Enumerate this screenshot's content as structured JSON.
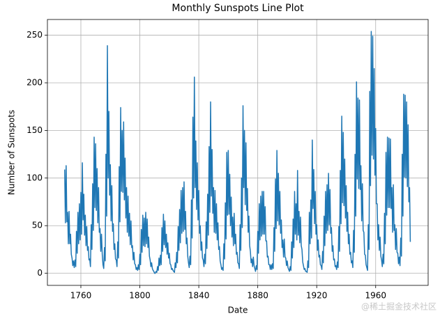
{
  "chart_data": {
    "type": "line",
    "title": "Monthly Sunspots Line Plot",
    "x_label": "Date",
    "y_label": "Number of Sunspots",
    "watermark": "@稀土掘金技术社区",
    "xlim": [
      1737.3,
      1995.6
    ],
    "ylim": [
      -12.7,
      266.5
    ],
    "xticks": [
      1760,
      1800,
      1840,
      1880,
      1920,
      1960
    ],
    "yticks": [
      0,
      50,
      100,
      150,
      200,
      250
    ],
    "grid": true,
    "x": [
      1749,
      1749.5,
      1750,
      1750.5,
      1751,
      1751.5,
      1752,
      1752.5,
      1753,
      1753.5,
      1754,
      1754.5,
      1755,
      1755.5,
      1756,
      1756.5,
      1757,
      1757.5,
      1758,
      1758.5,
      1759,
      1759.5,
      1760,
      1760.5,
      1761,
      1761.5,
      1762,
      1762.5,
      1763,
      1763.5,
      1764,
      1764.5,
      1765,
      1765.5,
      1766,
      1766.5,
      1767,
      1767.5,
      1768,
      1768.5,
      1769,
      1769.5,
      1770,
      1770.5,
      1771,
      1771.5,
      1772,
      1772.5,
      1773,
      1773.5,
      1774,
      1774.5,
      1775,
      1775.5,
      1776,
      1776.5,
      1777,
      1777.5,
      1778,
      1778.5,
      1779,
      1779.5,
      1780,
      1780.5,
      1781,
      1781.5,
      1782,
      1782.5,
      1783,
      1783.5,
      1784,
      1784.5,
      1785,
      1785.5,
      1786,
      1786.5,
      1787,
      1787.5,
      1788,
      1788.5,
      1789,
      1789.5,
      1790,
      1790.5,
      1791,
      1791.5,
      1792,
      1792.5,
      1793,
      1793.5,
      1794,
      1794.5,
      1795,
      1795.5,
      1796,
      1796.5,
      1797,
      1797.5,
      1798,
      1798.5,
      1799,
      1799.5,
      1800,
      1800.5,
      1801,
      1801.5,
      1802,
      1802.5,
      1803,
      1803.5,
      1804,
      1804.5,
      1805,
      1805.5,
      1806,
      1806.5,
      1807,
      1807.5,
      1808,
      1808.5,
      1809,
      1809.5,
      1810,
      1810.5,
      1811,
      1811.5,
      1812,
      1812.5,
      1813,
      1813.5,
      1814,
      1814.5,
      1815,
      1815.5,
      1816,
      1816.5,
      1817,
      1817.5,
      1818,
      1818.5,
      1819,
      1819.5,
      1820,
      1820.5,
      1821,
      1821.5,
      1822,
      1822.5,
      1823,
      1823.5,
      1824,
      1824.5,
      1825,
      1825.5,
      1826,
      1826.5,
      1827,
      1827.5,
      1828,
      1828.5,
      1829,
      1829.5,
      1830,
      1830.5,
      1831,
      1831.5,
      1832,
      1832.5,
      1833,
      1833.5,
      1834,
      1834.5,
      1835,
      1835.5,
      1836,
      1836.5,
      1837,
      1837.5,
      1838,
      1838.5,
      1839,
      1839.5,
      1840,
      1840.5,
      1841,
      1841.5,
      1842,
      1842.5,
      1843,
      1843.5,
      1844,
      1844.5,
      1845,
      1845.5,
      1846,
      1846.5,
      1847,
      1847.5,
      1848,
      1848.5,
      1849,
      1849.5,
      1850,
      1850.5,
      1851,
      1851.5,
      1852,
      1852.5,
      1853,
      1853.5,
      1854,
      1854.5,
      1855,
      1855.5,
      1856,
      1856.5,
      1857,
      1857.5,
      1858,
      1858.5,
      1859,
      1859.5,
      1860,
      1860.5,
      1861,
      1861.5,
      1862,
      1862.5,
      1863,
      1863.5,
      1864,
      1864.5,
      1865,
      1865.5,
      1866,
      1866.5,
      1867,
      1867.5,
      1868,
      1868.5,
      1869,
      1869.5,
      1870,
      1870.5,
      1871,
      1871.5,
      1872,
      1872.5,
      1873,
      1873.5,
      1874,
      1874.5,
      1875,
      1875.5,
      1876,
      1876.5,
      1877,
      1877.5,
      1878,
      1878.5,
      1879,
      1879.5,
      1880,
      1880.5,
      1881,
      1881.5,
      1882,
      1882.5,
      1883,
      1883.5,
      1884,
      1884.5,
      1885,
      1885.5,
      1886,
      1886.5,
      1887,
      1887.5,
      1888,
      1888.5,
      1889,
      1889.5,
      1890,
      1890.5,
      1891,
      1891.5,
      1892,
      1892.5,
      1893,
      1893.5,
      1894,
      1894.5,
      1895,
      1895.5,
      1896,
      1896.5,
      1897,
      1897.5,
      1898,
      1898.5,
      1899,
      1899.5,
      1900,
      1900.5,
      1901,
      1901.5,
      1902,
      1902.5,
      1903,
      1903.5,
      1904,
      1904.5,
      1905,
      1905.5,
      1906,
      1906.5,
      1907,
      1907.5,
      1908,
      1908.5,
      1909,
      1909.5,
      1910,
      1910.5,
      1911,
      1911.5,
      1912,
      1912.5,
      1913,
      1913.5,
      1914,
      1914.5,
      1915,
      1915.5,
      1916,
      1916.5,
      1917,
      1917.5,
      1918,
      1918.5,
      1919,
      1919.5,
      1920,
      1920.5,
      1921,
      1921.5,
      1922,
      1922.5,
      1923,
      1923.5,
      1924,
      1924.5,
      1925,
      1925.5,
      1926,
      1926.5,
      1927,
      1927.5,
      1928,
      1928.5,
      1929,
      1929.5,
      1930,
      1930.5,
      1931,
      1931.5,
      1932,
      1932.5,
      1933,
      1933.5,
      1934,
      1934.5,
      1935,
      1935.5,
      1936,
      1936.5,
      1937,
      1937.5,
      1938,
      1938.5,
      1939,
      1939.5,
      1940,
      1940.5,
      1941,
      1941.5,
      1942,
      1942.5,
      1943,
      1943.5,
      1944,
      1944.5,
      1945,
      1945.5,
      1946,
      1946.5,
      1947,
      1947.5,
      1948,
      1948.5,
      1949,
      1949.5,
      1950,
      1950.5,
      1951,
      1951.5,
      1952,
      1952.5,
      1953,
      1953.5,
      1954,
      1954.5,
      1955,
      1955.5,
      1956,
      1956.5,
      1957,
      1957.5,
      1958,
      1958.5,
      1959,
      1959.5,
      1960,
      1960.5,
      1961,
      1961.5,
      1962,
      1962.5,
      1963,
      1963.5,
      1964,
      1964.5,
      1965,
      1965.5,
      1966,
      1966.5,
      1967,
      1967.5,
      1968,
      1968.5,
      1969,
      1969.5,
      1970,
      1970.5,
      1971,
      1971.5,
      1972,
      1972.5,
      1973,
      1973.5,
      1974,
      1974.5,
      1975,
      1975.5,
      1976,
      1976.5,
      1977,
      1977.5,
      1978,
      1978.5,
      1979,
      1979.5,
      1980,
      1980.5,
      1981,
      1981.5,
      1982,
      1982.5,
      1983,
      1983.5
    ],
    "series": [
      {
        "name": "Sunspots",
        "color": "#1f77b4",
        "values": [
          109,
          53,
          113,
          54,
          64,
          31,
          65,
          31,
          41,
          20,
          16,
          8,
          13,
          6,
          14,
          7,
          44,
          21,
          64,
          31,
          73,
          35,
          85,
          41,
          116,
          56,
          83,
          40,
          61,
          29,
          49,
          24,
          28,
          14,
          15,
          7,
          51,
          25,
          94,
          45,
          143,
          69,
          136,
          66,
          110,
          53,
          90,
          43,
          47,
          23,
          41,
          20,
          9,
          5,
          27,
          13,
          125,
          60,
          239,
          100,
          170,
          82,
          114,
          55,
          92,
          44,
          52,
          25,
          31,
          15,
          14,
          7,
          33,
          16,
          112,
          54,
          174,
          86,
          150,
          85,
          159,
          77,
          121,
          58,
          90,
          43,
          81,
          39,
          63,
          30,
          55,
          27,
          29,
          14,
          22,
          10,
          9,
          4,
          6,
          3,
          9,
          4,
          20,
          9,
          46,
          22,
          61,
          29,
          58,
          28,
          64,
          31,
          57,
          27,
          38,
          18,
          14,
          7,
          11,
          5,
          3,
          2,
          0,
          0,
          2,
          1,
          7,
          3,
          16,
          8,
          19,
          9,
          48,
          23,
          62,
          30,
          55,
          27,
          41,
          20,
          32,
          16,
          21,
          10,
          9,
          4,
          5,
          3,
          2,
          1,
          11,
          6,
          22,
          11,
          49,
          24,
          67,
          32,
          87,
          42,
          90,
          44,
          96,
          46,
          65,
          31,
          37,
          18,
          11,
          6,
          18,
          9,
          77,
          37,
          164,
          79,
          206,
          90,
          139,
          67,
          116,
          56,
          87,
          42,
          50,
          24,
          33,
          16,
          14,
          7,
          20,
          10,
          54,
          26,
          83,
          40,
          133,
          64,
          180,
          81,
          130,
          63,
          90,
          43,
          87,
          42,
          73,
          35,
          53,
          25,
          28,
          13,
          9,
          4,
          6,
          3,
          31,
          15,
          74,
          36,
          127,
          61,
          129,
          62,
          104,
          50,
          80,
          38,
          59,
          29,
          63,
          31,
          41,
          20,
          22,
          11,
          10,
          5,
          51,
          24,
          100,
          48,
          176,
          90,
          150,
          72,
          137,
          66,
          89,
          43,
          60,
          29,
          23,
          11,
          15,
          7,
          17,
          8,
          5,
          2,
          8,
          4,
          44,
          21,
          73,
          35,
          81,
          39,
          86,
          41,
          86,
          41,
          70,
          34,
          34,
          17,
          18,
          9,
          9,
          4,
          9,
          4,
          10,
          5,
          48,
          23,
          99,
          47,
          129,
          55,
          105,
          51,
          86,
          42,
          56,
          27,
          35,
          17,
          36,
          17,
          16,
          8,
          13,
          6,
          4,
          2,
          7,
          3,
          33,
          16,
          57,
          27,
          86,
          41,
          73,
          35,
          108,
          40,
          65,
          32,
          59,
          29,
          25,
          12,
          8,
          4,
          5,
          2,
          2,
          1,
          13,
          6,
          64,
          31,
          77,
          37,
          140,
          68,
          109,
          52,
          86,
          41,
          51,
          24,
          35,
          17,
          19,
          9,
          8,
          4,
          23,
          11,
          60,
          29,
          86,
          42,
          93,
          45,
          105,
          51,
          88,
          42,
          48,
          23,
          29,
          14,
          15,
          7,
          8,
          4,
          12,
          6,
          49,
          23,
          108,
          52,
          165,
          74,
          148,
          71,
          120,
          58,
          92,
          44,
          64,
          31,
          41,
          20,
          22,
          11,
          13,
          6,
          45,
          22,
          125,
          60,
          201,
          99,
          184,
          89,
          182,
          88,
          113,
          55,
          94,
          45,
          43,
          20,
          19,
          9,
          6,
          3,
          51,
          25,
          191,
          92,
          254,
          124,
          249,
          120,
          215,
          103,
          152,
          73,
          73,
          35,
          51,
          24,
          38,
          18,
          14,
          7,
          20,
          10,
          63,
          31,
          127,
          61,
          143,
          69,
          142,
          69,
          141,
          68,
          90,
          43,
          93,
          45,
          51,
          25,
          47,
          22,
          21,
          10,
          17,
          8,
          37,
          18,
          125,
          60,
          188,
          101,
          187,
          100,
          180,
          91,
          156,
          75,
          90,
          33
        ]
      }
    ]
  }
}
